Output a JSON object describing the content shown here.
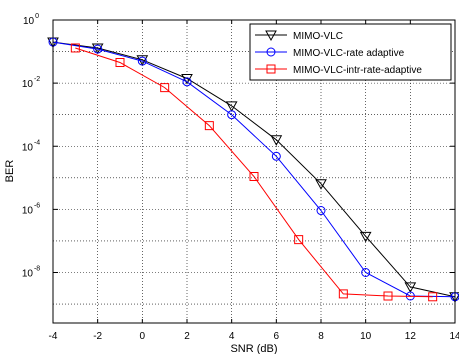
{
  "chart_data": {
    "type": "line",
    "title": "",
    "xlabel": "SNR (dB)",
    "ylabel": "BER",
    "xlim": [
      -4,
      14
    ],
    "ylim_log10": [
      -9.6,
      0
    ],
    "yscale": "log",
    "grid": true,
    "grid_style": "dotted",
    "legend_position": "top-right",
    "x_ticks": [
      -4,
      -2,
      0,
      2,
      4,
      6,
      8,
      10,
      12,
      14
    ],
    "x_tick_labels": [
      "-4",
      "-2",
      "0",
      "2",
      "4",
      "6",
      "8",
      "10",
      "12",
      "14"
    ],
    "y_ticks": [
      {
        "base": "10",
        "exp": "0",
        "log": 0
      },
      {
        "base": "10",
        "exp": "-2",
        "log": -2
      },
      {
        "base": "10",
        "exp": "-4",
        "log": -4
      },
      {
        "base": "10",
        "exp": "-6",
        "log": -6
      },
      {
        "base": "10",
        "exp": "-8",
        "log": -8
      }
    ],
    "y_minor_tick_logs": [
      -1,
      -3,
      -5,
      -7,
      -9
    ],
    "series": [
      {
        "name": "MIMO-VLC",
        "color": "#000000",
        "marker": "triangle-down",
        "x": [
          -4,
          -2,
          0,
          2,
          4,
          6,
          8,
          10,
          12,
          14
        ],
        "y": [
          0.2,
          0.13,
          0.055,
          0.014,
          0.0019,
          0.00016,
          6.5e-06,
          1.4e-07,
          3.5e-09,
          1.7e-09
        ]
      },
      {
        "name": "MIMO-VLC-rate adaptive",
        "color": "#0000ff",
        "marker": "circle",
        "x": [
          -4,
          -2,
          0,
          2,
          4,
          6,
          8,
          10,
          12,
          14
        ],
        "y": [
          0.2,
          0.12,
          0.05,
          0.011,
          0.001,
          4.8e-05,
          9.2e-07,
          1e-08,
          1.8e-09,
          1.7e-09
        ]
      },
      {
        "name": "MIMO-VLC-intr-rate-adaptive",
        "color": "#ff0000",
        "marker": "square",
        "x": [
          -3,
          -1,
          1,
          3,
          5,
          7,
          9,
          11,
          13
        ],
        "y": [
          0.13,
          0.045,
          0.0072,
          0.00045,
          1.1e-05,
          1.1e-07,
          2.1e-09,
          1.8e-09,
          1.7e-09
        ]
      }
    ]
  }
}
